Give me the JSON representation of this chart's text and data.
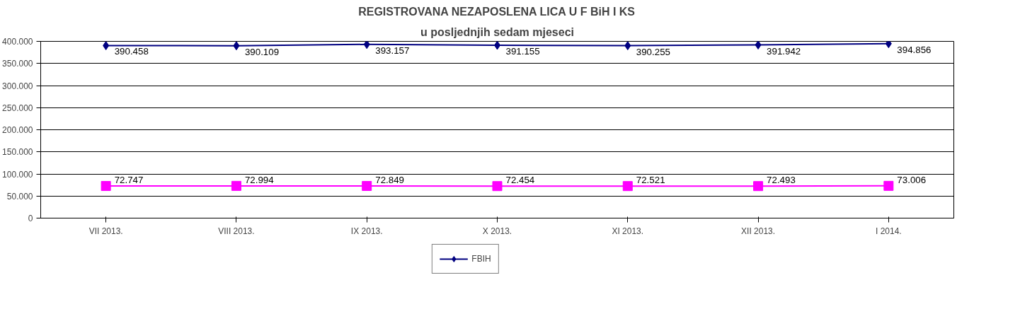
{
  "chart_data": {
    "type": "line",
    "title": "REGISTROVANA NEZAPOSLENA LICA U F BiH I KS",
    "subtitle": "u posljednjih sedam mjeseci",
    "categories": [
      "VII 2013.",
      "VIII 2013.",
      "IX 2013.",
      "X 2013.",
      "XI 2013.",
      "XII 2013.",
      "I 2014."
    ],
    "series": [
      {
        "name": "FBIH",
        "color": "#000080",
        "marker": "diamond",
        "values": [
          390458,
          390109,
          393157,
          391155,
          390255,
          391942,
          394856
        ],
        "value_labels": [
          "390.458",
          "390.109",
          "393.157",
          "391.155",
          "390.255",
          "391.942",
          "394.856"
        ]
      },
      {
        "color": "#ff00ff",
        "marker": "square",
        "values": [
          72747,
          72994,
          72849,
          72454,
          72521,
          72493,
          73006
        ],
        "value_labels": [
          "72.747",
          "72.994",
          "72.849",
          "72.454",
          "72.521",
          "72.493",
          "73.006"
        ]
      }
    ],
    "ylim": [
      0,
      400000
    ],
    "yticks": [
      0,
      {
        "value": 50000,
        "label": "50.000"
      },
      {
        "value": 100000,
        "label": "100.000"
      },
      {
        "value": 150000,
        "label": "150.000"
      },
      {
        "value": 200000,
        "label": "200.000"
      },
      {
        "value": 250000,
        "label": "250.000"
      },
      {
        "value": 300000,
        "label": "300.000"
      },
      {
        "value": 350000,
        "label": "350.000"
      },
      {
        "value": 400000,
        "label": "400.000"
      }
    ],
    "grid": "y",
    "legend": "bottom"
  }
}
